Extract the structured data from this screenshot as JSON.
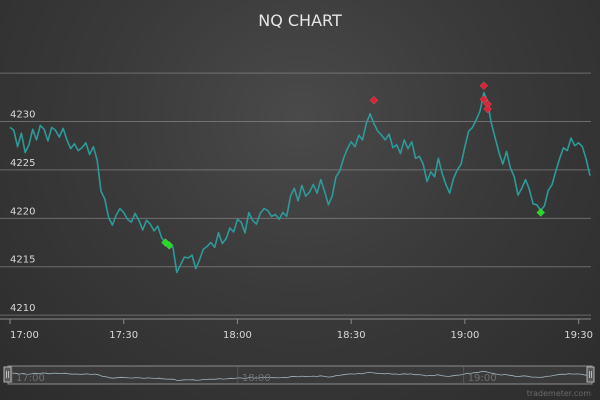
{
  "chart_data": {
    "type": "line",
    "title": "NQ CHART",
    "x_tick_labels": [
      "17:00",
      "17:30",
      "18:00",
      "18:30",
      "19:00",
      "19:30"
    ],
    "y_tick_labels": [
      "4210",
      "4215",
      "4220",
      "4225",
      "4230"
    ],
    "x_range": [
      "17:00",
      "19:33"
    ],
    "y_range": [
      4209.7,
      4237.6
    ],
    "grid": "horizontal",
    "colors": {
      "price_line": "#2e9a9a",
      "buy_marker": "#22dd22",
      "sell_marker": "#dd2233"
    },
    "series": [
      {
        "points": [
          [
            "17:00",
            4229.4
          ],
          [
            "17:01",
            4229.1
          ],
          [
            "17:02",
            4227.4
          ],
          [
            "17:03",
            4228.8
          ],
          [
            "17:04",
            4226.8
          ],
          [
            "17:05",
            4227.6
          ],
          [
            "17:06",
            4229.2
          ],
          [
            "17:07",
            4228.1
          ],
          [
            "17:08",
            4229.6
          ],
          [
            "17:09",
            4229.2
          ],
          [
            "17:10",
            4228.0
          ],
          [
            "17:11",
            4229.4
          ],
          [
            "17:12",
            4229.1
          ],
          [
            "17:13",
            4228.4
          ],
          [
            "17:14",
            4229.3
          ],
          [
            "17:15",
            4228.1
          ],
          [
            "17:16",
            4227.2
          ],
          [
            "17:17",
            4227.7
          ],
          [
            "17:18",
            4227.0
          ],
          [
            "17:19",
            4227.3
          ],
          [
            "17:20",
            4227.8
          ],
          [
            "17:21",
            4226.6
          ],
          [
            "17:22",
            4227.4
          ],
          [
            "17:23",
            4226.0
          ],
          [
            "17:24",
            4222.8
          ],
          [
            "17:25",
            4222.0
          ],
          [
            "17:26",
            4220.1
          ],
          [
            "17:27",
            4219.3
          ],
          [
            "17:28",
            4220.3
          ],
          [
            "17:29",
            4221.0
          ],
          [
            "17:30",
            4220.6
          ],
          [
            "17:31",
            4219.9
          ],
          [
            "17:32",
            4219.6
          ],
          [
            "17:33",
            4220.5
          ],
          [
            "17:34",
            4219.8
          ],
          [
            "17:35",
            4218.8
          ],
          [
            "17:36",
            4219.8
          ],
          [
            "17:37",
            4219.4
          ],
          [
            "17:38",
            4218.7
          ],
          [
            "17:39",
            4219.2
          ],
          [
            "17:40",
            4218.0
          ],
          [
            "17:41",
            4217.5
          ],
          [
            "17:42",
            4217.2
          ],
          [
            "17:43",
            4217.0
          ],
          [
            "17:44",
            4214.4
          ],
          [
            "17:45",
            4215.2
          ],
          [
            "17:46",
            4216.0
          ],
          [
            "17:47",
            4215.9
          ],
          [
            "17:48",
            4216.2
          ],
          [
            "17:49",
            4214.8
          ],
          [
            "17:50",
            4215.7
          ],
          [
            "17:51",
            4216.8
          ],
          [
            "17:52",
            4217.1
          ],
          [
            "17:53",
            4217.5
          ],
          [
            "17:54",
            4217.0
          ],
          [
            "17:55",
            4218.5
          ],
          [
            "17:56",
            4217.4
          ],
          [
            "17:57",
            4217.9
          ],
          [
            "17:58",
            4219.0
          ],
          [
            "17:59",
            4218.6
          ],
          [
            "18:00",
            4219.9
          ],
          [
            "18:01",
            4219.6
          ],
          [
            "18:02",
            4218.5
          ],
          [
            "18:03",
            4220.6
          ],
          [
            "18:04",
            4219.8
          ],
          [
            "18:05",
            4219.4
          ],
          [
            "18:06",
            4220.5
          ],
          [
            "18:07",
            4221.0
          ],
          [
            "18:08",
            4220.8
          ],
          [
            "18:09",
            4220.2
          ],
          [
            "18:10",
            4220.4
          ],
          [
            "18:11",
            4219.9
          ],
          [
            "18:12",
            4220.6
          ],
          [
            "18:13",
            4220.2
          ],
          [
            "18:14",
            4222.3
          ],
          [
            "18:15",
            4223.1
          ],
          [
            "18:16",
            4221.8
          ],
          [
            "18:17",
            4223.4
          ],
          [
            "18:18",
            4222.3
          ],
          [
            "18:19",
            4222.7
          ],
          [
            "18:20",
            4223.5
          ],
          [
            "18:21",
            4222.6
          ],
          [
            "18:22",
            4224.0
          ],
          [
            "18:23",
            4222.8
          ],
          [
            "18:24",
            4221.4
          ],
          [
            "18:25",
            4222.3
          ],
          [
            "18:26",
            4224.3
          ],
          [
            "18:27",
            4224.9
          ],
          [
            "18:28",
            4226.2
          ],
          [
            "18:29",
            4227.2
          ],
          [
            "18:30",
            4227.9
          ],
          [
            "18:31",
            4227.4
          ],
          [
            "18:32",
            4228.6
          ],
          [
            "18:33",
            4228.1
          ],
          [
            "18:34",
            4229.8
          ],
          [
            "18:35",
            4230.8
          ],
          [
            "18:36",
            4229.8
          ],
          [
            "18:37",
            4229.0
          ],
          [
            "18:38",
            4228.6
          ],
          [
            "18:39",
            4228.1
          ],
          [
            "18:40",
            4228.7
          ],
          [
            "18:41",
            4227.3
          ],
          [
            "18:42",
            4227.6
          ],
          [
            "18:43",
            4226.7
          ],
          [
            "18:44",
            4228.1
          ],
          [
            "18:45",
            4227.2
          ],
          [
            "18:46",
            4227.9
          ],
          [
            "18:47",
            4226.2
          ],
          [
            "18:48",
            4226.4
          ],
          [
            "18:49",
            4225.6
          ],
          [
            "18:50",
            4223.8
          ],
          [
            "18:51",
            4224.8
          ],
          [
            "18:52",
            4224.3
          ],
          [
            "18:53",
            4226.2
          ],
          [
            "18:54",
            4224.6
          ],
          [
            "18:55",
            4223.5
          ],
          [
            "18:56",
            4222.6
          ],
          [
            "18:57",
            4224.1
          ],
          [
            "18:58",
            4225.0
          ],
          [
            "18:59",
            4225.6
          ],
          [
            "19:00",
            4227.4
          ],
          [
            "19:01",
            4229.0
          ],
          [
            "19:02",
            4229.4
          ],
          [
            "19:03",
            4230.2
          ],
          [
            "19:04",
            4231.1
          ],
          [
            "19:05",
            4233.0
          ],
          [
            "19:06",
            4232.0
          ],
          [
            "19:07",
            4229.8
          ],
          [
            "19:08",
            4228.3
          ],
          [
            "19:09",
            4226.8
          ],
          [
            "19:10",
            4225.6
          ],
          [
            "19:11",
            4226.9
          ],
          [
            "19:12",
            4225.2
          ],
          [
            "19:13",
            4224.3
          ],
          [
            "19:14",
            4222.4
          ],
          [
            "19:15",
            4223.1
          ],
          [
            "19:16",
            4224.0
          ],
          [
            "19:17",
            4223.0
          ],
          [
            "19:18",
            4221.5
          ],
          [
            "19:19",
            4221.4
          ],
          [
            "19:20",
            4220.8
          ],
          [
            "19:21",
            4221.3
          ],
          [
            "19:22",
            4222.9
          ],
          [
            "19:23",
            4223.5
          ],
          [
            "19:24",
            4224.9
          ],
          [
            "19:25",
            4226.2
          ],
          [
            "19:26",
            4227.3
          ],
          [
            "19:27",
            4227.0
          ],
          [
            "19:28",
            4228.3
          ],
          [
            "19:29",
            4227.5
          ],
          [
            "19:30",
            4227.8
          ],
          [
            "19:31",
            4227.4
          ],
          [
            "19:32",
            4226.1
          ],
          [
            "19:33",
            4224.4
          ]
        ]
      }
    ],
    "markers": [
      {
        "kind": "buy",
        "x": "17:41",
        "y": 4217.5
      },
      {
        "kind": "buy",
        "x": "17:42",
        "y": 4217.2
      },
      {
        "kind": "buy",
        "x": "19:20",
        "y": 4220.6
      },
      {
        "kind": "sell",
        "x": "18:36",
        "y": 4232.2
      },
      {
        "kind": "sell",
        "x": "19:05",
        "y": 4233.7
      },
      {
        "kind": "sell",
        "x": "19:05",
        "y": 4232.3
      },
      {
        "kind": "sell",
        "x": "19:06",
        "y": 4231.8
      },
      {
        "kind": "sell",
        "x": "19:06",
        "y": 4231.3
      }
    ]
  },
  "navigator": {
    "labels": [
      "17:00",
      "18:00",
      "19:00"
    ],
    "left_handle_icon": "drag-handle-icon",
    "right_handle_icon": "drag-handle-icon"
  },
  "credit": "trademeter.com"
}
